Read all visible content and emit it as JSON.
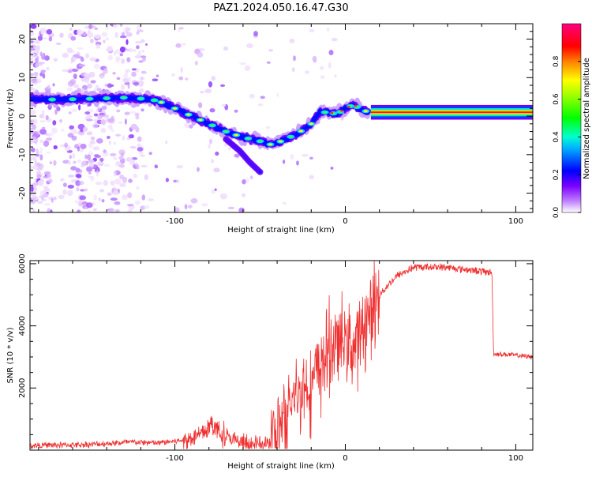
{
  "title": "PAZ1.2024.050.16.47.G30",
  "chart_data": [
    {
      "type": "heatmap",
      "xlabel": "Height of straight line (km)",
      "ylabel": "Frequency (Hz)",
      "xlim": [
        -185,
        110
      ],
      "ylim": [
        -25,
        24
      ],
      "xticks": [
        -100,
        0,
        100
      ],
      "yticks": [
        -20,
        -10,
        0,
        10,
        20
      ],
      "grid": false,
      "colorbar": {
        "label": "Normalized spectral amplitude",
        "range": [
          0,
          1
        ],
        "ticks": [
          0.0,
          0.2,
          0.4,
          0.6,
          0.8
        ],
        "tick_labels": [
          "0.0",
          "0.2",
          "0.4",
          "0.6",
          "0.8"
        ],
        "colormap": "rainbow (white-lavender, violet, blue, cyan, green, yellow, red, magenta)"
      },
      "ridge": {
        "x": [
          -185,
          -170,
          -150,
          -130,
          -118,
          -110,
          -100,
          -90,
          -80,
          -70,
          -60,
          -50,
          -43,
          -35,
          -28,
          -20,
          -15,
          -10,
          -5,
          0,
          5,
          10,
          15,
          110
        ],
        "frequency": [
          4.5,
          4.3,
          4.5,
          4.8,
          4.5,
          4.0,
          2.0,
          0.0,
          -2.0,
          -4.0,
          -5.5,
          -6.5,
          -7.5,
          -6.0,
          -4.5,
          -2.0,
          1.0,
          1.0,
          0.5,
          2.0,
          3.0,
          1.5,
          1.0,
          1.0
        ]
      },
      "branch": {
        "x": [
          -70,
          -62,
          -56,
          -50
        ],
        "frequency": [
          -6.0,
          -9.0,
          -12.0,
          -14.5
        ]
      },
      "noise_bands_x": [
        -180,
        -155,
        -140,
        -125
      ]
    },
    {
      "type": "line",
      "xlabel": "Height of straight line (km)",
      "ylabel": "SNR (10 * v/v)",
      "xlim": [
        -185,
        110
      ],
      "ylim": [
        0,
        6100
      ],
      "xticks": [
        -100,
        0,
        100
      ],
      "yticks": [
        2000,
        4000,
        6000
      ],
      "color": "#f03030",
      "series": [
        {
          "x": [
            -185,
            -150,
            -125,
            -110,
            -95,
            -85,
            -78,
            -72,
            -65,
            -55,
            -45,
            -40,
            -35,
            -30,
            -25,
            -20,
            -15,
            -10,
            -5,
            0,
            5,
            10,
            15,
            20,
            30,
            40,
            50,
            60,
            70,
            80,
            86,
            87,
            95,
            110
          ],
          "values": [
            150,
            180,
            260,
            230,
            320,
            500,
            820,
            500,
            300,
            160,
            200,
            450,
            1000,
            1700,
            2000,
            2100,
            2600,
            3200,
            3400,
            3600,
            3300,
            3900,
            4400,
            5000,
            5600,
            5880,
            5900,
            5880,
            5820,
            5750,
            5720,
            3100,
            3080,
            3000
          ]
        }
      ]
    }
  ]
}
